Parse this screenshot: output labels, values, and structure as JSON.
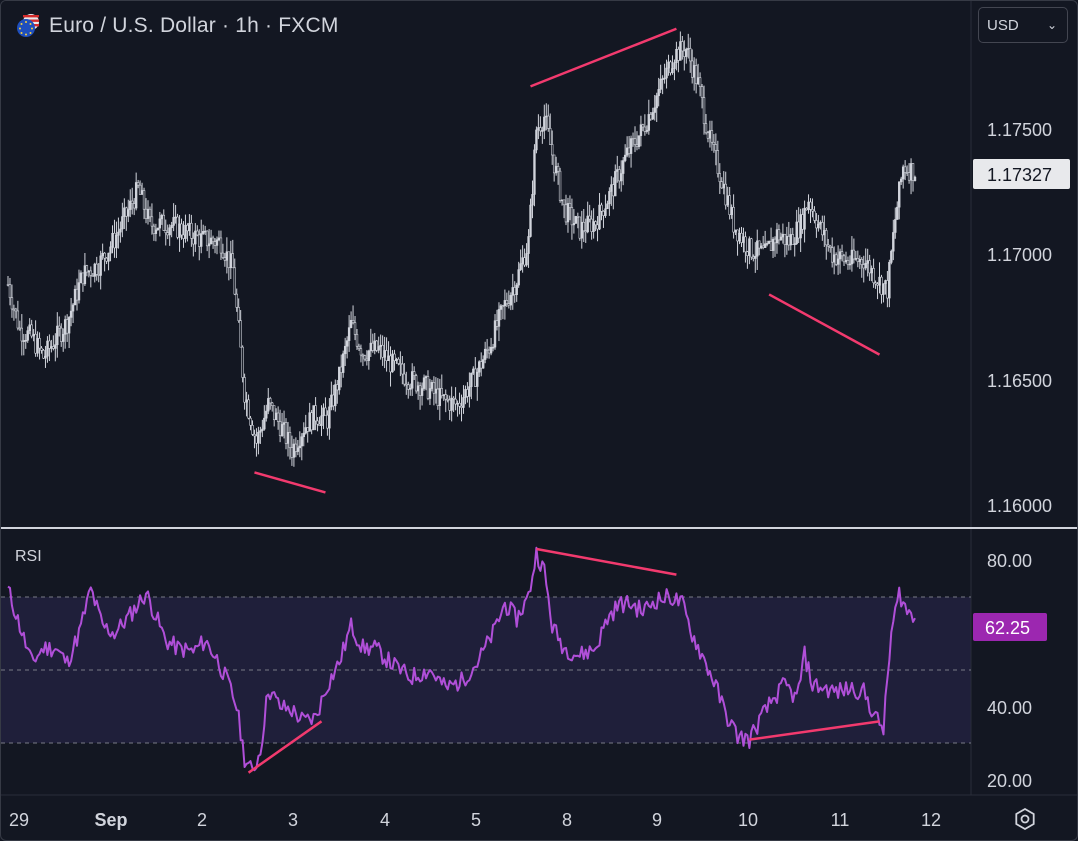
{
  "header": {
    "title": "Euro / U.S. Dollar · 1h · FXCM",
    "currency": "USD",
    "currency_chevron": "chevron-down-icon",
    "flag_icon": "eur-usd-flag-icon"
  },
  "colors": {
    "background": "#131722",
    "candle": "#d1d4dc",
    "divergence": "#f23a6e",
    "rsi_line": "#b04fd8",
    "rsi_band": "#1f1f3a",
    "price_badge": "#e8e9ec",
    "rsi_badge": "#9c27b0"
  },
  "price_axis": {
    "ticks": [
      "1.17500",
      "1.17000",
      "1.16500",
      "1.16000"
    ],
    "current_price": "1.17327"
  },
  "rsi_axis": {
    "label": "RSI",
    "ticks": [
      "80.00",
      "40.00",
      "20.00"
    ],
    "current_value": "62.25"
  },
  "time_axis": {
    "ticks": [
      "29",
      "Sep",
      "2",
      "3",
      "4",
      "5",
      "8",
      "9",
      "10",
      "11",
      "12"
    ]
  },
  "settings_icon": "gear-icon",
  "chart_data": [
    {
      "type": "candlestick",
      "title": "Euro / U.S. Dollar · 1h · FXCM",
      "y_ticks": [
        1.16,
        1.165,
        1.17,
        1.175
      ],
      "ylim": [
        1.1585,
        1.1795
      ],
      "x_categories": [
        "29",
        "Sep",
        "2",
        "3",
        "4",
        "5",
        "8",
        "9",
        "10",
        "11",
        "12"
      ],
      "anchors_close": [
        [
          0,
          1.1688
        ],
        [
          6,
          1.167
        ],
        [
          12,
          1.1667
        ],
        [
          18,
          1.1659
        ],
        [
          24,
          1.1666
        ],
        [
          30,
          1.1673
        ],
        [
          38,
          1.1692
        ],
        [
          46,
          1.1696
        ],
        [
          54,
          1.1706
        ],
        [
          62,
          1.1719
        ],
        [
          66,
          1.1726
        ],
        [
          72,
          1.1712
        ],
        [
          82,
          1.1712
        ],
        [
          90,
          1.1709
        ],
        [
          98,
          1.1706
        ],
        [
          108,
          1.1705
        ],
        [
          114,
          1.1694
        ],
        [
          120,
          1.1645
        ],
        [
          126,
          1.1625
        ],
        [
          132,
          1.164
        ],
        [
          138,
          1.1632
        ],
        [
          144,
          1.1622
        ],
        [
          150,
          1.1631
        ],
        [
          156,
          1.1636
        ],
        [
          162,
          1.1634
        ],
        [
          168,
          1.1651
        ],
        [
          174,
          1.1672
        ],
        [
          180,
          1.1661
        ],
        [
          188,
          1.1662
        ],
        [
          196,
          1.1655
        ],
        [
          204,
          1.165
        ],
        [
          212,
          1.1647
        ],
        [
          220,
          1.1642
        ],
        [
          228,
          1.164
        ],
        [
          236,
          1.165
        ],
        [
          244,
          1.1663
        ],
        [
          252,
          1.168
        ],
        [
          258,
          1.169
        ],
        [
          264,
          1.1705
        ],
        [
          268,
          1.175
        ],
        [
          272,
          1.1755
        ],
        [
          276,
          1.174
        ],
        [
          282,
          1.1718
        ],
        [
          290,
          1.171
        ],
        [
          298,
          1.1713
        ],
        [
          306,
          1.1725
        ],
        [
          314,
          1.174
        ],
        [
          322,
          1.175
        ],
        [
          330,
          1.1765
        ],
        [
          338,
          1.178
        ],
        [
          344,
          1.1782
        ],
        [
          350,
          1.1768
        ],
        [
          356,
          1.1745
        ],
        [
          362,
          1.173
        ],
        [
          368,
          1.1712
        ],
        [
          376,
          1.1702
        ],
        [
          384,
          1.17
        ],
        [
          390,
          1.1708
        ],
        [
          396,
          1.1705
        ],
        [
          402,
          1.1712
        ],
        [
          406,
          1.1722
        ],
        [
          412,
          1.171
        ],
        [
          418,
          1.17
        ],
        [
          426,
          1.1697
        ],
        [
          434,
          1.1698
        ],
        [
          442,
          1.1689
        ],
        [
          446,
          1.1686
        ],
        [
          450,
          1.1714
        ],
        [
          454,
          1.1735
        ],
        [
          460,
          1.1733
        ]
      ],
      "anchors_rsi": [
        [
          0,
          72
        ],
        [
          6,
          62
        ],
        [
          12,
          52
        ],
        [
          18,
          56
        ],
        [
          24,
          56
        ],
        [
          30,
          52
        ],
        [
          36,
          60
        ],
        [
          42,
          72
        ],
        [
          48,
          62
        ],
        [
          54,
          60
        ],
        [
          62,
          65
        ],
        [
          70,
          71
        ],
        [
          74,
          66
        ],
        [
          80,
          58
        ],
        [
          86,
          56
        ],
        [
          94,
          55
        ],
        [
          100,
          58
        ],
        [
          106,
          53
        ],
        [
          112,
          46
        ],
        [
          116,
          40
        ],
        [
          120,
          26
        ],
        [
          124,
          22
        ],
        [
          128,
          28
        ],
        [
          132,
          45
        ],
        [
          138,
          40
        ],
        [
          144,
          39
        ],
        [
          150,
          36
        ],
        [
          156,
          37
        ],
        [
          162,
          46
        ],
        [
          168,
          52
        ],
        [
          174,
          62
        ],
        [
          180,
          56
        ],
        [
          186,
          56
        ],
        [
          194,
          52
        ],
        [
          204,
          48
        ],
        [
          214,
          50
        ],
        [
          222,
          45
        ],
        [
          230,
          47
        ],
        [
          238,
          52
        ],
        [
          246,
          60
        ],
        [
          252,
          68
        ],
        [
          258,
          64
        ],
        [
          264,
          70
        ],
        [
          268,
          82
        ],
        [
          272,
          77
        ],
        [
          276,
          62
        ],
        [
          282,
          56
        ],
        [
          290,
          54
        ],
        [
          298,
          56
        ],
        [
          304,
          64
        ],
        [
          310,
          68
        ],
        [
          316,
          68
        ],
        [
          322,
          66
        ],
        [
          328,
          69
        ],
        [
          336,
          70
        ],
        [
          342,
          68
        ],
        [
          346,
          61
        ],
        [
          352,
          54
        ],
        [
          358,
          47
        ],
        [
          364,
          38
        ],
        [
          370,
          32
        ],
        [
          376,
          31
        ],
        [
          382,
          37
        ],
        [
          388,
          42
        ],
        [
          394,
          46
        ],
        [
          400,
          42
        ],
        [
          404,
          54
        ],
        [
          408,
          46
        ],
        [
          414,
          45
        ],
        [
          420,
          44
        ],
        [
          428,
          45
        ],
        [
          434,
          44
        ],
        [
          440,
          37
        ],
        [
          444,
          34
        ],
        [
          448,
          60
        ],
        [
          452,
          71
        ],
        [
          456,
          66
        ],
        [
          460,
          64
        ]
      ],
      "ohlc_sample": [
        {
          "o": 1.1688,
          "h": 1.169,
          "l": 1.1683,
          "c": 1.1685
        },
        {
          "o": 1.175,
          "h": 1.1763,
          "l": 1.1741,
          "c": 1.1755
        },
        {
          "o": 1.1782,
          "h": 1.1789,
          "l": 1.1775,
          "c": 1.1779
        },
        {
          "o": 1.1723,
          "h": 1.1739,
          "l": 1.1715,
          "c": 1.1733
        }
      ],
      "divergence_lines_price": [
        {
          "from": [
            125,
            1.1613
          ],
          "to": [
            161,
            1.1605
          ]
        },
        {
          "from": [
            265,
            1.1767
          ],
          "to": [
            339,
            1.179
          ]
        },
        {
          "from": [
            386,
            1.1684
          ],
          "to": [
            442,
            1.166
          ]
        }
      ]
    },
    {
      "type": "line",
      "title": "RSI",
      "ylim": [
        16,
        86
      ],
      "y_ticks": [
        20,
        40,
        80
      ],
      "bands": {
        "upper": 70,
        "middle": 50,
        "lower": 30
      },
      "current": 62.25,
      "divergence_lines_rsi": [
        {
          "from": [
            122,
            22
          ],
          "to": [
            159,
            36
          ]
        },
        {
          "from": [
            268,
            83
          ],
          "to": [
            339,
            76
          ]
        },
        {
          "from": [
            376,
            31
          ],
          "to": [
            442,
            36
          ]
        }
      ]
    }
  ]
}
